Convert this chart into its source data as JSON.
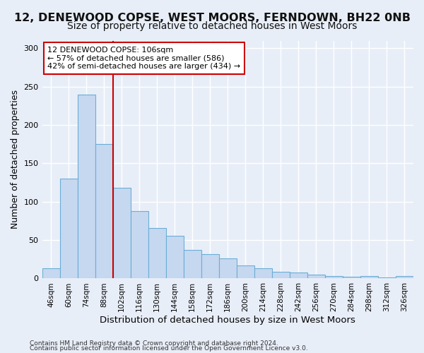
{
  "title1": "12, DENEWOOD COPSE, WEST MOORS, FERNDOWN, BH22 0NB",
  "title2": "Size of property relative to detached houses in West Moors",
  "xlabel": "Distribution of detached houses by size in West Moors",
  "ylabel": "Number of detached properties",
  "categories": [
    "46sqm",
    "60sqm",
    "74sqm",
    "88sqm",
    "102sqm",
    "116sqm",
    "130sqm",
    "144sqm",
    "158sqm",
    "172sqm",
    "186sqm",
    "200sqm",
    "214sqm",
    "228sqm",
    "242sqm",
    "256sqm",
    "270sqm",
    "284sqm",
    "298sqm",
    "312sqm",
    "326sqm"
  ],
  "values": [
    13,
    130,
    240,
    175,
    118,
    88,
    66,
    56,
    37,
    32,
    26,
    17,
    13,
    9,
    8,
    5,
    3,
    2,
    3,
    1,
    3
  ],
  "bar_color": "#c5d8f0",
  "bar_edge_color": "#6aaed6",
  "annotation_lines": [
    "12 DENEWOOD COPSE: 106sqm",
    "← 57% of detached houses are smaller (586)",
    "42% of semi-detached houses are larger (434) →"
  ],
  "annotation_box_color": "white",
  "annotation_box_edge": "#cc0000",
  "vline_color": "#cc0000",
  "vline_x": 3.5,
  "ylim": [
    0,
    310
  ],
  "yticks": [
    0,
    50,
    100,
    150,
    200,
    250,
    300
  ],
  "footer1": "Contains HM Land Registry data © Crown copyright and database right 2024.",
  "footer2": "Contains public sector information licensed under the Open Government Licence v3.0.",
  "bg_color": "#e8eef8",
  "grid_color": "#ffffff",
  "title1_fontsize": 11.5,
  "title2_fontsize": 10,
  "axis_label_fontsize": 9,
  "tick_fontsize": 7.5,
  "footer_fontsize": 6.5,
  "annotation_fontsize": 8
}
